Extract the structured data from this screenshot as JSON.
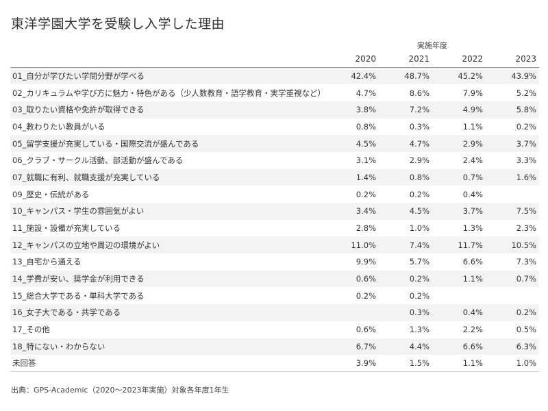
{
  "title": "東洋学園大学を受験し入学した理由",
  "source": "出典：GPS-Academic（2020〜2023年実施）対象各年度1年生",
  "chart_data": {
    "type": "table",
    "title": "東洋学園大学を受験し入学した理由",
    "column_group_label": "実施年度",
    "columns": [
      "2020",
      "2021",
      "2022",
      "2023"
    ],
    "rows": [
      {
        "label": "01_自分が学びたい学問分野が学べる",
        "values": [
          "42.4%",
          "48.7%",
          "45.2%",
          "43.9%"
        ]
      },
      {
        "label": "02_カリキュラムや学び方に魅力・特色がある（少人数教育・語学教育・実学重視など）",
        "values": [
          "4.7%",
          "8.6%",
          "7.9%",
          "5.2%"
        ]
      },
      {
        "label": "03_取りたい資格や免許が取得できる",
        "values": [
          "3.8%",
          "7.2%",
          "4.9%",
          "5.8%"
        ]
      },
      {
        "label": "04_教わりたい教員がいる",
        "values": [
          "0.8%",
          "0.3%",
          "1.1%",
          "0.2%"
        ]
      },
      {
        "label": "05_留学支援が充実している・国際交流が盛んである",
        "values": [
          "4.5%",
          "4.7%",
          "2.9%",
          "3.7%"
        ]
      },
      {
        "label": "06_クラブ・サークル活動、部活動が盛んである",
        "values": [
          "3.1%",
          "2.9%",
          "2.4%",
          "3.3%"
        ]
      },
      {
        "label": "07_就職に有利、就職支援が充実している",
        "values": [
          "1.4%",
          "0.8%",
          "0.7%",
          "1.6%"
        ]
      },
      {
        "label": "09_歴史・伝統がある",
        "values": [
          "0.2%",
          "0.2%",
          "0.4%",
          ""
        ]
      },
      {
        "label": "10_キャンパス・学生の雰囲気がよい",
        "values": [
          "3.4%",
          "4.5%",
          "3.7%",
          "7.5%"
        ]
      },
      {
        "label": "11_施設・設備が充実している",
        "values": [
          "2.8%",
          "1.0%",
          "1.3%",
          "2.3%"
        ]
      },
      {
        "label": "12_キャンパスの立地や周辺の環境がよい",
        "values": [
          "11.0%",
          "7.4%",
          "11.7%",
          "10.5%"
        ]
      },
      {
        "label": "13_自宅から通える",
        "values": [
          "9.9%",
          "5.7%",
          "6.6%",
          "7.3%"
        ]
      },
      {
        "label": "14_学費が安い、奨学金が利用できる",
        "values": [
          "0.6%",
          "0.2%",
          "1.1%",
          "0.7%"
        ]
      },
      {
        "label": "15_総合大学である・単科大学である",
        "values": [
          "0.2%",
          "0.2%",
          "",
          ""
        ]
      },
      {
        "label": "16_女子大である・共学である",
        "values": [
          "",
          "0.3%",
          "0.4%",
          "0.2%"
        ]
      },
      {
        "label": "17_その他",
        "values": [
          "0.6%",
          "1.3%",
          "2.2%",
          "0.5%"
        ]
      },
      {
        "label": "18_特にない・わからない",
        "values": [
          "6.7%",
          "4.4%",
          "6.6%",
          "6.3%"
        ]
      },
      {
        "label": "未回答",
        "values": [
          "3.9%",
          "1.5%",
          "1.1%",
          "1.0%"
        ]
      }
    ]
  }
}
